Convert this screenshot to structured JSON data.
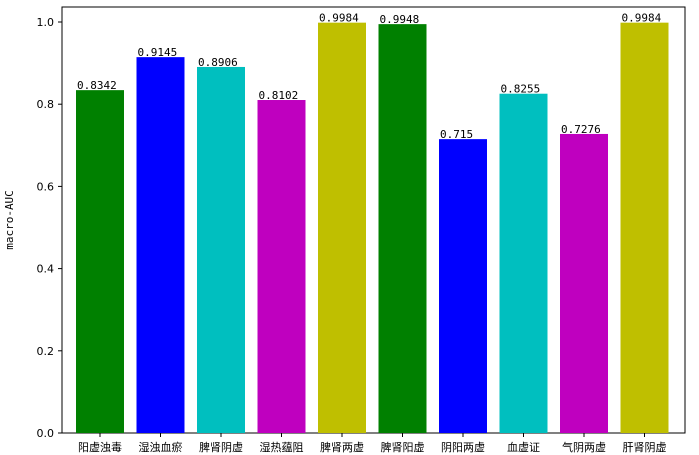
{
  "chart_data": {
    "type": "bar",
    "title": "",
    "xlabel": "",
    "ylabel": "macro-AUC",
    "ylim": [
      0.0,
      1.05
    ],
    "yticks": [
      0.0,
      0.2,
      0.4,
      0.6,
      0.8,
      1.0
    ],
    "ytick_labels": [
      "0.0",
      "0.2",
      "0.4",
      "0.6",
      "0.8",
      "1.0"
    ],
    "grid": false,
    "categories": [
      "阳虚浊毒",
      "湿浊血瘀",
      "脾肾阴虚",
      "湿热蕴阻",
      "脾肾两虚",
      "脾肾阳虚",
      "阴阳两虚",
      "血虚证",
      "气阴两虚",
      "肝肾阴虚"
    ],
    "values": [
      0.8342,
      0.9145,
      0.8906,
      0.8102,
      0.9984,
      0.9948,
      0.715,
      0.8255,
      0.7276,
      0.9984
    ],
    "value_labels": [
      "0.8342",
      "0.9145",
      "0.8906",
      "0.8102",
      "0.9984",
      "0.9948",
      "0.715",
      "0.8255",
      "0.7276",
      "0.9984"
    ],
    "bar_colors": [
      "#008000",
      "#0000ff",
      "#00bfbf",
      "#bf00bf",
      "#bfbf00",
      "#008000",
      "#0000ff",
      "#00bfbf",
      "#bf00bf",
      "#bfbf00"
    ]
  }
}
